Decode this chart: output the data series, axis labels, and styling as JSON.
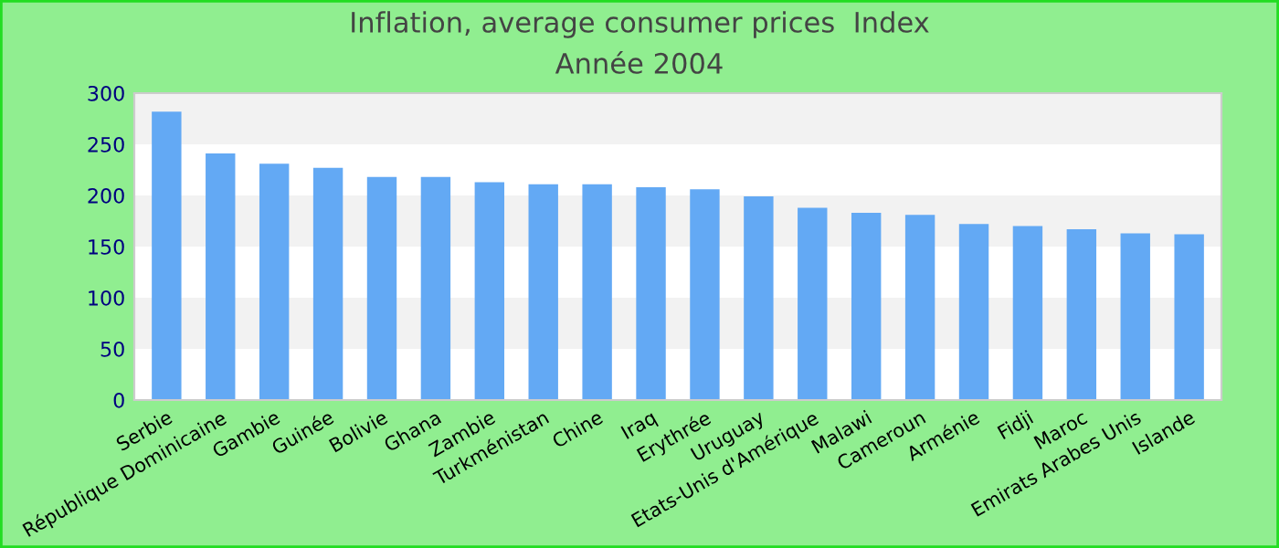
{
  "chart_data": {
    "type": "bar",
    "title": "Inflation, average consumer prices  Index",
    "subtitle": "Année 2004",
    "categories": [
      "Serbie",
      "République Dominicaine",
      "Gambie",
      "Guinée",
      "Bolivie",
      "Ghana",
      "Zambie",
      "Turkménistan",
      "Chine",
      "Iraq",
      "Erythrée",
      "Uruguay",
      "Etats-Unis d'Amérique",
      "Malawi",
      "Cameroun",
      "Arménie",
      "Fidji",
      "Maroc",
      "Emirats Arabes Unis",
      "Islande"
    ],
    "values": [
      282,
      241,
      231,
      227,
      218,
      218,
      213,
      211,
      211,
      208,
      206,
      199,
      188,
      183,
      181,
      172,
      170,
      167,
      163,
      162
    ],
    "color": "#63a9f4",
    "ylim": [
      0,
      300
    ],
    "yticks": [
      0,
      50,
      100,
      150,
      200,
      250,
      300
    ],
    "legend": false,
    "bands": [
      {
        "axis": "y",
        "from": 50,
        "to": 100,
        "color": "#f2f2f2"
      },
      {
        "axis": "y",
        "from": 150,
        "to": 200,
        "color": "#f2f2f2"
      },
      {
        "axis": "y",
        "from": 250,
        "to": 300,
        "color": "#f2f2f2"
      }
    ]
  }
}
